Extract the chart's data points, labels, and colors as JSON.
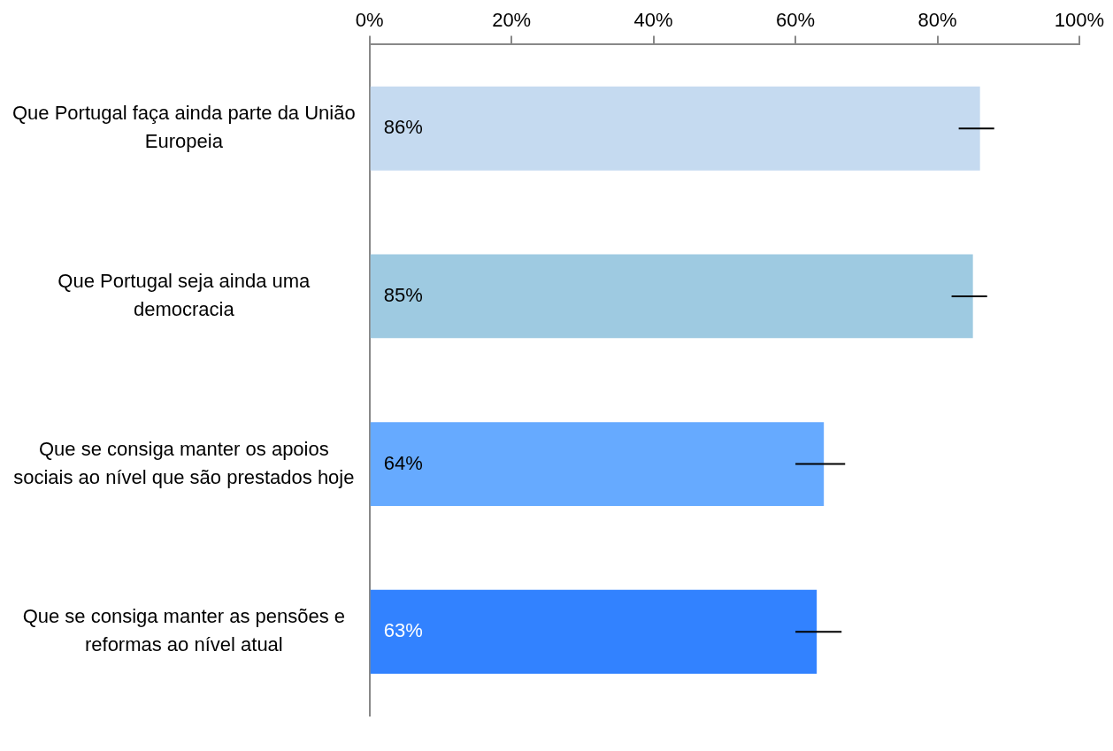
{
  "chart_data": {
    "type": "bar",
    "orientation": "horizontal",
    "categories": [
      "Que Portugal faça ainda parte da União Europeia",
      "Que Portugal seja ainda uma democracia",
      "Que se consiga manter os apoios sociais ao nível que são prestados hoje",
      "Que se consiga manter as pensões e reformas ao nível atual"
    ],
    "values": [
      86,
      85,
      64,
      63
    ],
    "colors": [
      "#c5daf0",
      "#9ecae1",
      "#66aaff",
      "#3282ff"
    ],
    "value_labels": [
      "86%",
      "85%",
      "64%",
      "63%"
    ],
    "errors": [
      [
        83,
        88
      ],
      [
        82,
        87
      ],
      [
        60,
        67
      ],
      [
        60,
        66.5
      ]
    ],
    "xlim": [
      0,
      100
    ],
    "xticks": [
      {
        "value": 0,
        "label": "0%"
      },
      {
        "value": 20,
        "label": "20%"
      },
      {
        "value": 40,
        "label": "40%"
      },
      {
        "value": 60,
        "label": "60%"
      },
      {
        "value": 80,
        "label": "80%"
      },
      {
        "value": 100,
        "label": "100%"
      }
    ],
    "grid": false,
    "legend": false
  }
}
